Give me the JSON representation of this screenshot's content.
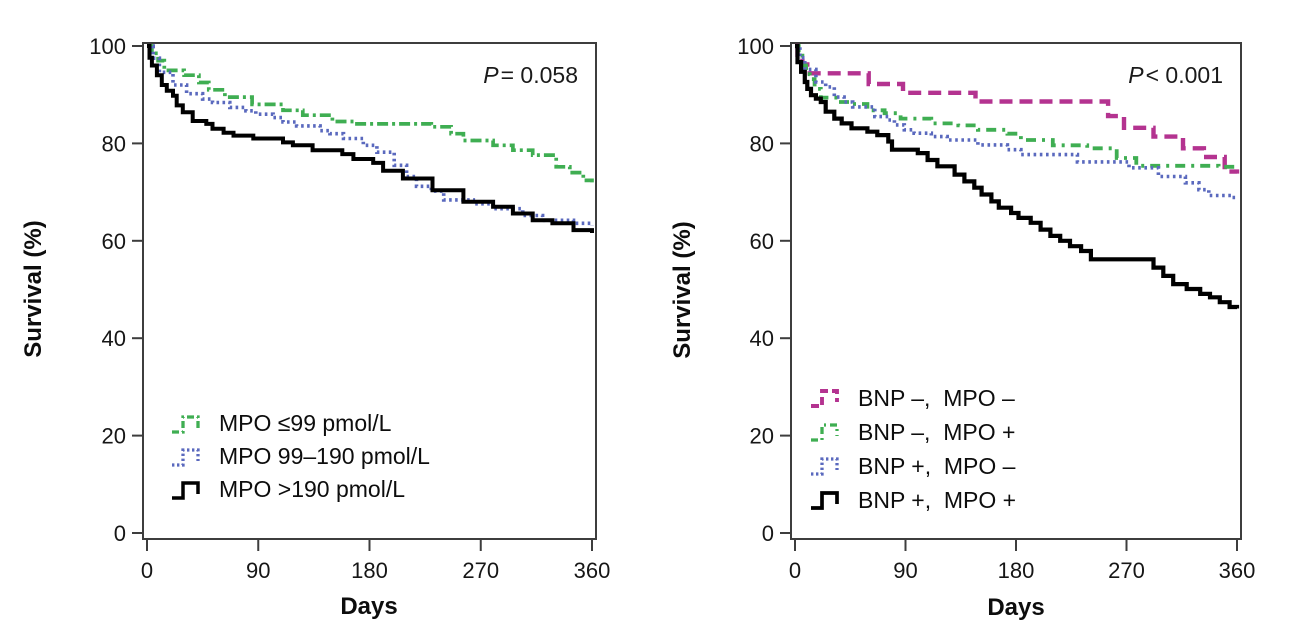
{
  "page": {
    "background": "#ffffff"
  },
  "chart_data": [
    {
      "type": "line",
      "subtype": "kaplan-meier-step",
      "panel": "left",
      "p_label": {
        "var": "P",
        "rest": "= 0.058"
      },
      "xlabel": "Days",
      "ylabel": "Survival (%)",
      "xlim": [
        0,
        360
      ],
      "ylim": [
        0,
        100
      ],
      "x_ticks": [
        0,
        90,
        180,
        270,
        360
      ],
      "y_ticks": [
        0,
        20,
        40,
        60,
        80,
        100
      ],
      "grid": false,
      "legend_position": "inside-lower-left",
      "axis_color": "#3d3d3d",
      "series": [
        {
          "name": "MPO ≤99 pmol/L",
          "color": "#3FAE52",
          "line_style": "dash-dot",
          "dash": "11 4 3 4",
          "legend_dash": "7 3 2 3",
          "width": 3.7,
          "points": [
            [
              0,
              100
            ],
            [
              4,
              98.5
            ],
            [
              9,
              97
            ],
            [
              14,
              95
            ],
            [
              30,
              94
            ],
            [
              42,
              92.5
            ],
            [
              50,
              91
            ],
            [
              63,
              89.5
            ],
            [
              85,
              88
            ],
            [
              110,
              86.8
            ],
            [
              126,
              85.8
            ],
            [
              150,
              84.5
            ],
            [
              168,
              84
            ],
            [
              230,
              83.4
            ],
            [
              246,
              82
            ],
            [
              256,
              80.6
            ],
            [
              280,
              79.6
            ],
            [
              296,
              78.6
            ],
            [
              312,
              77.6
            ],
            [
              331,
              75.2
            ],
            [
              342,
              74
            ],
            [
              353,
              72.4
            ],
            [
              360,
              72
            ]
          ]
        },
        {
          "name": "MPO 99–190 pmol/L",
          "color": "#5A69BE",
          "line_style": "dotted",
          "dash": "2.6 3.4",
          "legend_dash": "2.4 2.6",
          "width": 3.6,
          "points": [
            [
              0,
              100
            ],
            [
              5,
              97.5
            ],
            [
              10,
              94.6
            ],
            [
              21,
              92
            ],
            [
              32,
              90.2
            ],
            [
              45,
              89.1
            ],
            [
              53,
              88.4
            ],
            [
              67,
              87.4
            ],
            [
              80,
              86.7
            ],
            [
              88,
              86
            ],
            [
              102,
              85.3
            ],
            [
              110,
              84.4
            ],
            [
              121,
              83.6
            ],
            [
              140,
              82.6
            ],
            [
              148,
              82
            ],
            [
              159,
              81
            ],
            [
              175,
              79.6
            ],
            [
              186,
              78.2
            ],
            [
              200,
              75.5
            ],
            [
              210,
              73.2
            ],
            [
              218,
              71.2
            ],
            [
              230,
              70.2
            ],
            [
              240,
              68.4
            ],
            [
              264,
              67.6
            ],
            [
              280,
              66.6
            ],
            [
              304,
              65.2
            ],
            [
              320,
              64.2
            ],
            [
              345,
              63.6
            ],
            [
              360,
              63.2
            ]
          ]
        },
        {
          "name": "MPO >190 pmol/L",
          "color": "#000000",
          "line_style": "solid",
          "dash": "",
          "legend_dash": "",
          "width": 4,
          "points": [
            [
              0,
              100
            ],
            [
              2,
              97.6
            ],
            [
              4,
              96
            ],
            [
              8,
              94
            ],
            [
              12,
              92
            ],
            [
              16,
              90.8
            ],
            [
              21,
              89.8
            ],
            [
              24,
              87.8
            ],
            [
              29,
              86.4
            ],
            [
              37,
              84.6
            ],
            [
              48,
              84
            ],
            [
              53,
              83
            ],
            [
              62,
              82.2
            ],
            [
              70,
              81.6
            ],
            [
              86,
              81
            ],
            [
              110,
              80.2
            ],
            [
              118,
              79.6
            ],
            [
              134,
              78.6
            ],
            [
              158,
              77.8
            ],
            [
              167,
              76.8
            ],
            [
              183,
              76
            ],
            [
              191,
              74.4
            ],
            [
              207,
              72.8
            ],
            [
              231,
              70.4
            ],
            [
              256,
              68
            ],
            [
              280,
              67
            ],
            [
              296,
              65.6
            ],
            [
              312,
              64.2
            ],
            [
              328,
              63.6
            ],
            [
              345,
              62.2
            ],
            [
              360,
              61.6
            ]
          ]
        }
      ]
    },
    {
      "type": "line",
      "subtype": "kaplan-meier-step",
      "panel": "right",
      "p_label": {
        "var": "P",
        "rest": "< 0.001"
      },
      "xlabel": "Days",
      "ylabel": "Survival (%)",
      "xlim": [
        0,
        360
      ],
      "ylim": [
        0,
        100
      ],
      "x_ticks": [
        0,
        90,
        180,
        270,
        360
      ],
      "y_ticks": [
        0,
        20,
        40,
        60,
        80,
        100
      ],
      "grid": false,
      "legend_position": "inside-lower-left",
      "axis_color": "#3d3d3d",
      "series": [
        {
          "name": "BNP –,  MPO –",
          "color": "#B43390",
          "line_style": "dashed",
          "dash": "13 7",
          "legend_dash": "8 4",
          "width": 4.4,
          "points": [
            [
              0,
              100
            ],
            [
              2,
              98.2
            ],
            [
              6,
              96.2
            ],
            [
              12,
              94.4
            ],
            [
              60,
              92.2
            ],
            [
              88,
              90.4
            ],
            [
              147,
              88.6
            ],
            [
              255,
              85.6
            ],
            [
              268,
              83.2
            ],
            [
              292,
              81.4
            ],
            [
              316,
              79
            ],
            [
              333,
              77.2
            ],
            [
              350,
              74.2
            ],
            [
              360,
              73.8
            ]
          ]
        },
        {
          "name": "BNP –,  MPO +",
          "color": "#3FAE52",
          "line_style": "dash-dot",
          "dash": "10 6 3 6",
          "legend_dash": "7 4 2 4",
          "width": 3.8,
          "points": [
            [
              0,
              100
            ],
            [
              3,
              98
            ],
            [
              6,
              96
            ],
            [
              9,
              94.2
            ],
            [
              12,
              93.2
            ],
            [
              16,
              91.2
            ],
            [
              21,
              89.4
            ],
            [
              35,
              88.5
            ],
            [
              47,
              88.1
            ],
            [
              59,
              86.8
            ],
            [
              73,
              86.2
            ],
            [
              86,
              85.1
            ],
            [
              111,
              84.1
            ],
            [
              133,
              83.7
            ],
            [
              149,
              82.8
            ],
            [
              173,
              82
            ],
            [
              184,
              80.7
            ],
            [
              210,
              79.6
            ],
            [
              238,
              79
            ],
            [
              262,
              77
            ],
            [
              278,
              75.4
            ],
            [
              345,
              75.2
            ],
            [
              360,
              75.2
            ]
          ]
        },
        {
          "name": "BNP +,  MPO –",
          "color": "#5A69BE",
          "line_style": "dotted",
          "dash": "2.6 3.6",
          "legend_dash": "2.4 2.6",
          "width": 3.6,
          "points": [
            [
              0,
              100
            ],
            [
              4,
              97.6
            ],
            [
              8,
              95.2
            ],
            [
              17,
              92.6
            ],
            [
              25,
              91.6
            ],
            [
              32,
              89.5
            ],
            [
              40,
              88.5
            ],
            [
              47,
              87.5
            ],
            [
              65,
              85.5
            ],
            [
              76,
              84.8
            ],
            [
              81,
              83.8
            ],
            [
              89,
              82.8
            ],
            [
              97,
              82.1
            ],
            [
              111,
              81.4
            ],
            [
              124,
              80.7
            ],
            [
              149,
              79.7
            ],
            [
              173,
              78.7
            ],
            [
              184,
              77.7
            ],
            [
              230,
              76.2
            ],
            [
              272,
              75
            ],
            [
              296,
              73.2
            ],
            [
              318,
              71.9
            ],
            [
              329,
              70.5
            ],
            [
              337,
              69.3
            ],
            [
              355,
              68.9
            ],
            [
              360,
              68.8
            ]
          ]
        },
        {
          "name": "BNP +,  MPO +",
          "color": "#000000",
          "line_style": "solid",
          "dash": "",
          "legend_dash": "",
          "width": 4.2,
          "points": [
            [
              0,
              100
            ],
            [
              2,
              96.7
            ],
            [
              5,
              94.7
            ],
            [
              8,
              92.6
            ],
            [
              10,
              91.2
            ],
            [
              13,
              89.9
            ],
            [
              17,
              89.2
            ],
            [
              21,
              88.5
            ],
            [
              25,
              86.5
            ],
            [
              32,
              85.1
            ],
            [
              38,
              84.1
            ],
            [
              46,
              83.1
            ],
            [
              59,
              82.4
            ],
            [
              67,
              81.7
            ],
            [
              76,
              80.4
            ],
            [
              79,
              78.7
            ],
            [
              100,
              78
            ],
            [
              108,
              76.6
            ],
            [
              116,
              75.3
            ],
            [
              130,
              73.6
            ],
            [
              138,
              72.2
            ],
            [
              146,
              70.9
            ],
            [
              152,
              69.5
            ],
            [
              160,
              68.1
            ],
            [
              166,
              66.8
            ],
            [
              176,
              65.7
            ],
            [
              182,
              64.7
            ],
            [
              192,
              63.7
            ],
            [
              200,
              62.3
            ],
            [
              208,
              61
            ],
            [
              216,
              60
            ],
            [
              224,
              58.9
            ],
            [
              233,
              57.9
            ],
            [
              241,
              56.2
            ],
            [
              292,
              54.5
            ],
            [
              300,
              52.8
            ],
            [
              308,
              51.1
            ],
            [
              319,
              50.1
            ],
            [
              330,
              49.1
            ],
            [
              338,
              48.4
            ],
            [
              346,
              47.4
            ],
            [
              354,
              46.4
            ],
            [
              360,
              46.1
            ]
          ]
        }
      ]
    }
  ]
}
